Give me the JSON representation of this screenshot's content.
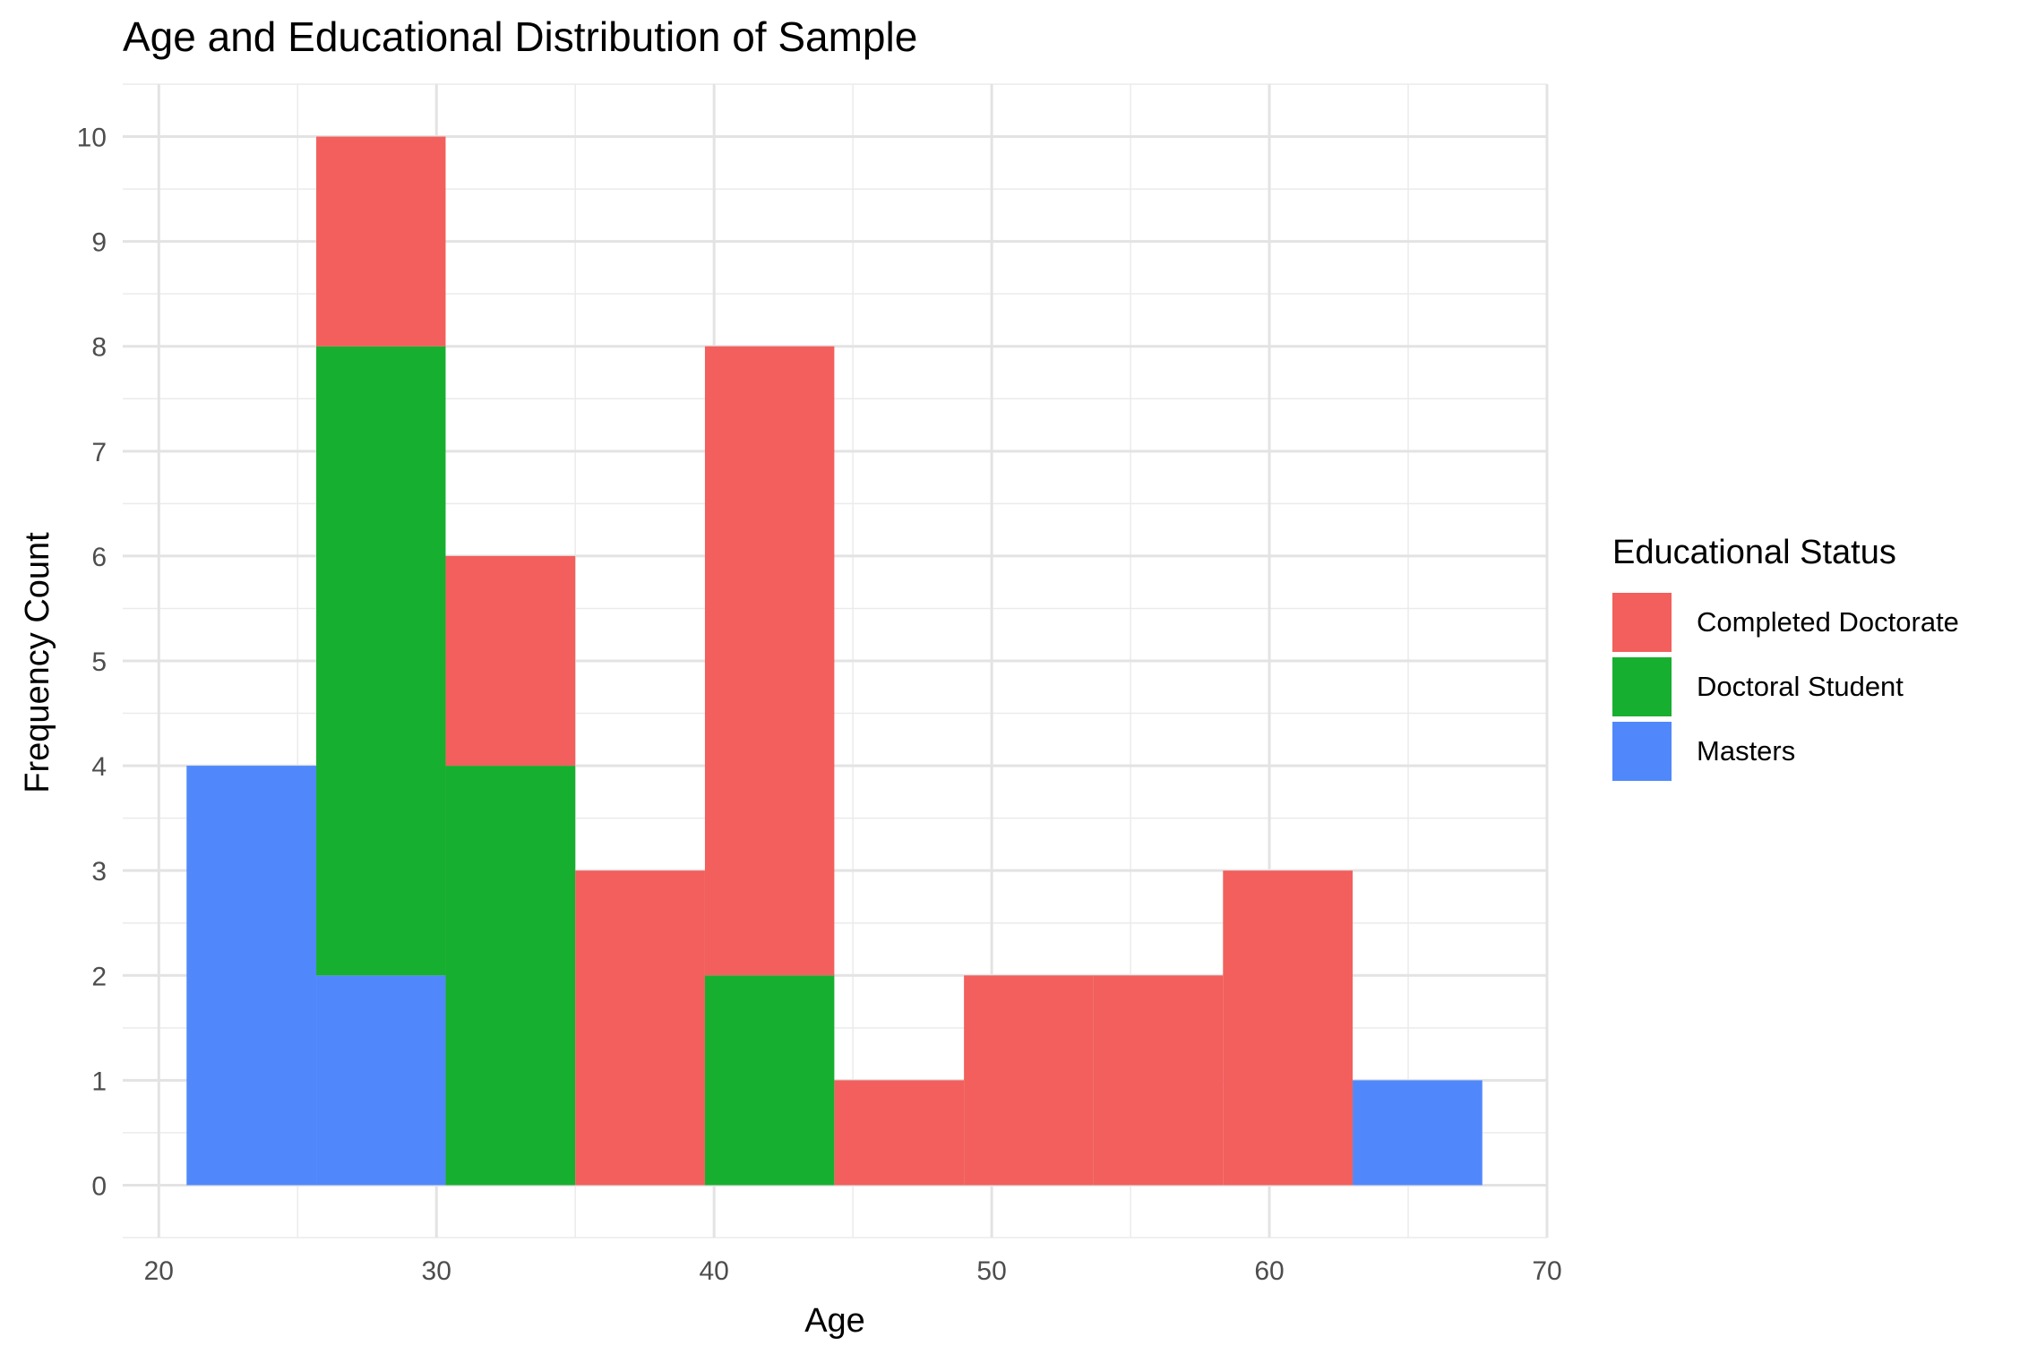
{
  "chart_data": {
    "type": "bar",
    "title": "Age and Educational Distribution of Sample",
    "xlabel": "Age",
    "ylabel": "Frequency Count",
    "xlim": [
      18.7,
      70
    ],
    "ylim": [
      -0.5,
      10.5
    ],
    "xticks": [
      20,
      30,
      40,
      50,
      60,
      70
    ],
    "yticks": [
      0,
      1,
      2,
      3,
      4,
      5,
      6,
      7,
      8,
      9,
      10
    ],
    "grid": true,
    "stacked": true,
    "legend_position": "right",
    "legend_title": "Educational Status",
    "bins": [
      [
        21.0,
        25.67
      ],
      [
        25.67,
        30.33
      ],
      [
        30.33,
        35.0
      ],
      [
        35.0,
        39.67
      ],
      [
        39.67,
        44.33
      ],
      [
        44.33,
        49.0
      ],
      [
        49.0,
        53.67
      ],
      [
        53.67,
        58.33
      ],
      [
        58.33,
        63.0
      ],
      [
        63.0,
        67.67
      ]
    ],
    "series": [
      {
        "name": "Completed Doctorate",
        "color": "#F25F5C",
        "values": [
          0,
          2,
          2,
          3,
          6,
          1,
          2,
          2,
          3,
          0
        ]
      },
      {
        "name": "Doctoral Student",
        "color": "#17AF2F",
        "values": [
          0,
          6,
          4,
          0,
          2,
          0,
          0,
          0,
          0,
          0
        ]
      },
      {
        "name": "Masters",
        "color": "#5088FC",
        "values": [
          4,
          2,
          0,
          0,
          0,
          0,
          0,
          0,
          0,
          1
        ]
      }
    ]
  }
}
